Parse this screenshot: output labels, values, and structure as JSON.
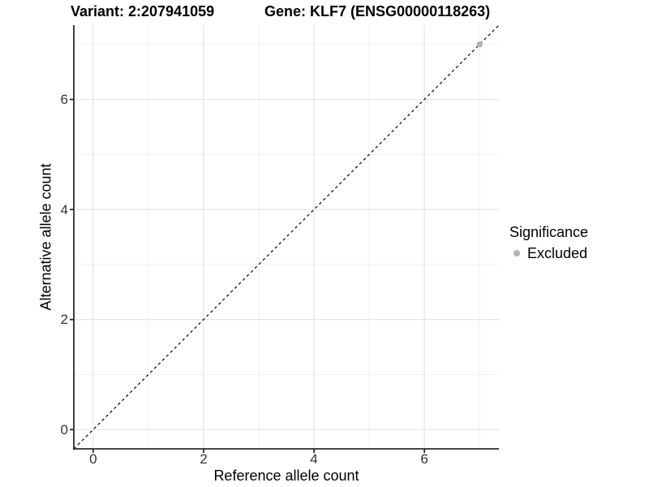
{
  "title": {
    "variant_label": "Variant: 2:207941059",
    "gene_label": "Gene: KLF7 (ENSG00000118263)"
  },
  "chart_data": {
    "type": "scatter",
    "title": "Variant: 2:207941059  /  Gene: KLF7 (ENSG00000118263)",
    "xlabel": "Reference allele count",
    "ylabel": "Alternative allele count",
    "xlim": [
      -0.35,
      7.35
    ],
    "ylim": [
      -0.35,
      7.35
    ],
    "x_major_ticks": [
      0,
      2,
      4,
      6
    ],
    "y_major_ticks": [
      0,
      2,
      4,
      6
    ],
    "x_tick_labels": [
      "0",
      "2",
      "4",
      "6"
    ],
    "y_tick_labels": [
      "0",
      "2",
      "4",
      "6"
    ],
    "x_minor_gridlines": [
      1,
      3,
      5,
      7
    ],
    "y_minor_gridlines": [
      1,
      3,
      5,
      7
    ],
    "grid": true,
    "legend_position": "right",
    "series": [
      {
        "name": "Excluded",
        "marker": "circle",
        "color": "#b3b3b3",
        "points": [
          {
            "x": 7,
            "y": 7
          }
        ]
      }
    ],
    "reference_line": {
      "kind": "identity y=x",
      "from": -0.35,
      "to": 7.35,
      "style": "dashed",
      "color": "#000000"
    }
  },
  "legend": {
    "title": "Significance",
    "items": [
      {
        "label": "Excluded",
        "color": "#b3b3b3",
        "marker": "circle"
      }
    ]
  },
  "colors": {
    "background": "#ffffff",
    "axis": "#2b2b2b",
    "grid_major": "#e6e6e6",
    "grid_minor": "#f0f0f0",
    "tick_text": "#333333",
    "point": "#b3b3b3"
  }
}
